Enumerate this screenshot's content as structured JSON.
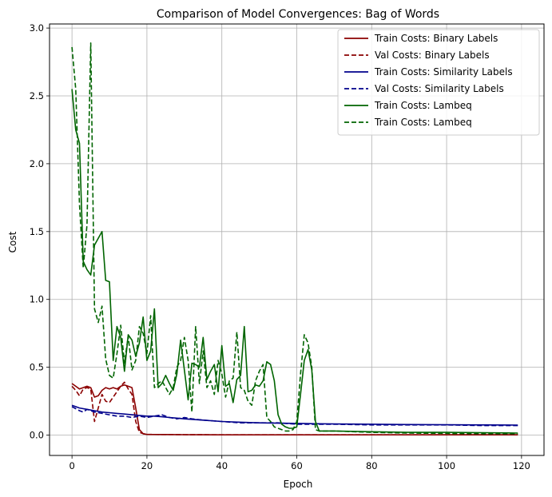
{
  "chart_data": {
    "type": "line",
    "title": "Comparison of Model Convergences: Bag of Words",
    "xlabel": "Epoch",
    "ylabel": "Cost",
    "xlim": [
      -6,
      126
    ],
    "ylim": [
      -0.15,
      3.03
    ],
    "xticks": [
      0,
      20,
      40,
      60,
      80,
      100,
      120
    ],
    "yticks": [
      0.0,
      0.5,
      1.0,
      1.5,
      2.0,
      2.5,
      3.0
    ],
    "xtick_labels": [
      "0",
      "20",
      "40",
      "60",
      "80",
      "100",
      "120"
    ],
    "ytick_labels": [
      "0.0",
      "0.5",
      "1.0",
      "1.5",
      "2.0",
      "2.5",
      "3.0"
    ],
    "grid": true,
    "legend_position": "top-right",
    "series": [
      {
        "name": "Train Costs: Binary Labels",
        "color": "#8b0000",
        "style": "solid",
        "x": [
          0,
          1,
          2,
          3,
          4,
          5,
          6,
          7,
          8,
          9,
          10,
          11,
          12,
          13,
          14,
          15,
          16,
          17,
          18,
          19,
          20,
          25,
          30,
          40,
          60,
          80,
          100,
          119
        ],
        "y": [
          0.38,
          0.36,
          0.34,
          0.35,
          0.36,
          0.35,
          0.28,
          0.29,
          0.33,
          0.35,
          0.34,
          0.35,
          0.34,
          0.36,
          0.37,
          0.36,
          0.35,
          0.2,
          0.04,
          0.01,
          0.005,
          0.004,
          0.003,
          0.002,
          0.002,
          0.002,
          0.002,
          0.002
        ]
      },
      {
        "name": "Val Costs: Binary Labels",
        "color": "#8b0000",
        "style": "dashed",
        "x": [
          0,
          1,
          2,
          3,
          4,
          5,
          6,
          7,
          8,
          9,
          10,
          11,
          12,
          13,
          14,
          15,
          16,
          17,
          18,
          19,
          20,
          25,
          30,
          40,
          60,
          80,
          100,
          119
        ],
        "y": [
          0.36,
          0.33,
          0.29,
          0.34,
          0.35,
          0.34,
          0.1,
          0.2,
          0.3,
          0.25,
          0.24,
          0.28,
          0.32,
          0.36,
          0.39,
          0.34,
          0.3,
          0.1,
          0.02,
          0.01,
          0.005,
          0.004,
          0.003,
          0.002,
          0.002,
          0.002,
          0.002,
          0.002
        ]
      },
      {
        "name": "Train Costs: Similarity Labels",
        "color": "#00008b",
        "style": "solid",
        "x": [
          0,
          2,
          4,
          6,
          8,
          10,
          12,
          14,
          16,
          18,
          20,
          22,
          24,
          26,
          28,
          30,
          35,
          40,
          45,
          50,
          55,
          60,
          65,
          70,
          80,
          90,
          100,
          110,
          119
        ],
        "y": [
          0.22,
          0.2,
          0.19,
          0.18,
          0.17,
          0.165,
          0.16,
          0.155,
          0.15,
          0.145,
          0.14,
          0.14,
          0.135,
          0.13,
          0.125,
          0.12,
          0.11,
          0.1,
          0.095,
          0.09,
          0.088,
          0.086,
          0.084,
          0.082,
          0.08,
          0.078,
          0.076,
          0.075,
          0.074
        ]
      },
      {
        "name": "Val Costs: Similarity Labels",
        "color": "#00008b",
        "style": "dashed",
        "x": [
          0,
          2,
          3,
          4,
          6,
          8,
          10,
          12,
          14,
          16,
          18,
          20,
          22,
          24,
          26,
          28,
          30,
          32,
          35,
          40,
          45,
          50,
          55,
          60,
          65,
          70,
          80,
          90,
          100,
          110,
          119
        ],
        "y": [
          0.21,
          0.18,
          0.17,
          0.19,
          0.17,
          0.16,
          0.15,
          0.14,
          0.14,
          0.13,
          0.14,
          0.13,
          0.14,
          0.15,
          0.13,
          0.12,
          0.13,
          0.12,
          0.11,
          0.1,
          0.09,
          0.09,
          0.09,
          0.08,
          0.08,
          0.08,
          0.075,
          0.075,
          0.075,
          0.07,
          0.07
        ]
      },
      {
        "name": "Train Costs: Lambeq",
        "color": "#006400",
        "style": "solid",
        "x": [
          0,
          1,
          2,
          3,
          4,
          5,
          6,
          7,
          8,
          9,
          10,
          11,
          12,
          13,
          14,
          15,
          16,
          17,
          18,
          19,
          20,
          21,
          22,
          23,
          24,
          25,
          26,
          27,
          28,
          29,
          30,
          31,
          32,
          33,
          34,
          35,
          36,
          37,
          38,
          39,
          40,
          41,
          42,
          43,
          44,
          45,
          46,
          47,
          48,
          49,
          50,
          51,
          52,
          53,
          54,
          55,
          56,
          57,
          58,
          59,
          60,
          61,
          62,
          63,
          64,
          65,
          66,
          70,
          80,
          90,
          100,
          110,
          119
        ],
        "y": [
          2.55,
          2.25,
          2.15,
          1.28,
          1.22,
          1.18,
          1.4,
          1.45,
          1.5,
          1.14,
          1.13,
          0.55,
          0.8,
          0.72,
          0.47,
          0.74,
          0.7,
          0.58,
          0.68,
          0.87,
          0.55,
          0.62,
          0.93,
          0.35,
          0.38,
          0.44,
          0.38,
          0.33,
          0.45,
          0.7,
          0.48,
          0.26,
          0.53,
          0.52,
          0.5,
          0.72,
          0.41,
          0.47,
          0.52,
          0.32,
          0.66,
          0.36,
          0.38,
          0.24,
          0.41,
          0.44,
          0.8,
          0.32,
          0.33,
          0.37,
          0.36,
          0.4,
          0.54,
          0.52,
          0.4,
          0.15,
          0.08,
          0.06,
          0.05,
          0.05,
          0.06,
          0.3,
          0.55,
          0.63,
          0.48,
          0.1,
          0.03,
          0.03,
          0.025,
          0.02,
          0.02,
          0.018,
          0.015
        ]
      },
      {
        "name": "Train Costs: Lambeq",
        "color": "#006400",
        "style": "dashed",
        "x": [
          0,
          1,
          2,
          3,
          4,
          5,
          6,
          7,
          8,
          9,
          10,
          11,
          12,
          13,
          14,
          15,
          16,
          17,
          18,
          19,
          20,
          21,
          22,
          23,
          24,
          25,
          26,
          27,
          28,
          29,
          30,
          31,
          32,
          33,
          34,
          35,
          36,
          37,
          38,
          39,
          40,
          41,
          42,
          43,
          44,
          45,
          46,
          47,
          48,
          49,
          50,
          51,
          52,
          53,
          54,
          55,
          56,
          57,
          58,
          59,
          60,
          61,
          62,
          63,
          64,
          65,
          66,
          70,
          80,
          90,
          100,
          110,
          119
        ],
        "y": [
          2.86,
          2.55,
          1.7,
          1.23,
          1.55,
          2.89,
          0.93,
          0.83,
          0.95,
          0.56,
          0.44,
          0.42,
          0.6,
          0.81,
          0.53,
          0.73,
          0.48,
          0.55,
          0.8,
          0.75,
          0.6,
          0.88,
          0.35,
          0.38,
          0.4,
          0.35,
          0.3,
          0.35,
          0.5,
          0.55,
          0.72,
          0.55,
          0.17,
          0.8,
          0.38,
          0.62,
          0.35,
          0.4,
          0.3,
          0.55,
          0.45,
          0.28,
          0.4,
          0.42,
          0.76,
          0.35,
          0.33,
          0.25,
          0.22,
          0.4,
          0.47,
          0.52,
          0.13,
          0.1,
          0.06,
          0.05,
          0.04,
          0.03,
          0.03,
          0.04,
          0.1,
          0.45,
          0.74,
          0.68,
          0.5,
          0.04,
          0.03,
          0.03,
          0.02,
          0.015,
          0.012,
          0.01,
          0.01
        ]
      }
    ]
  }
}
